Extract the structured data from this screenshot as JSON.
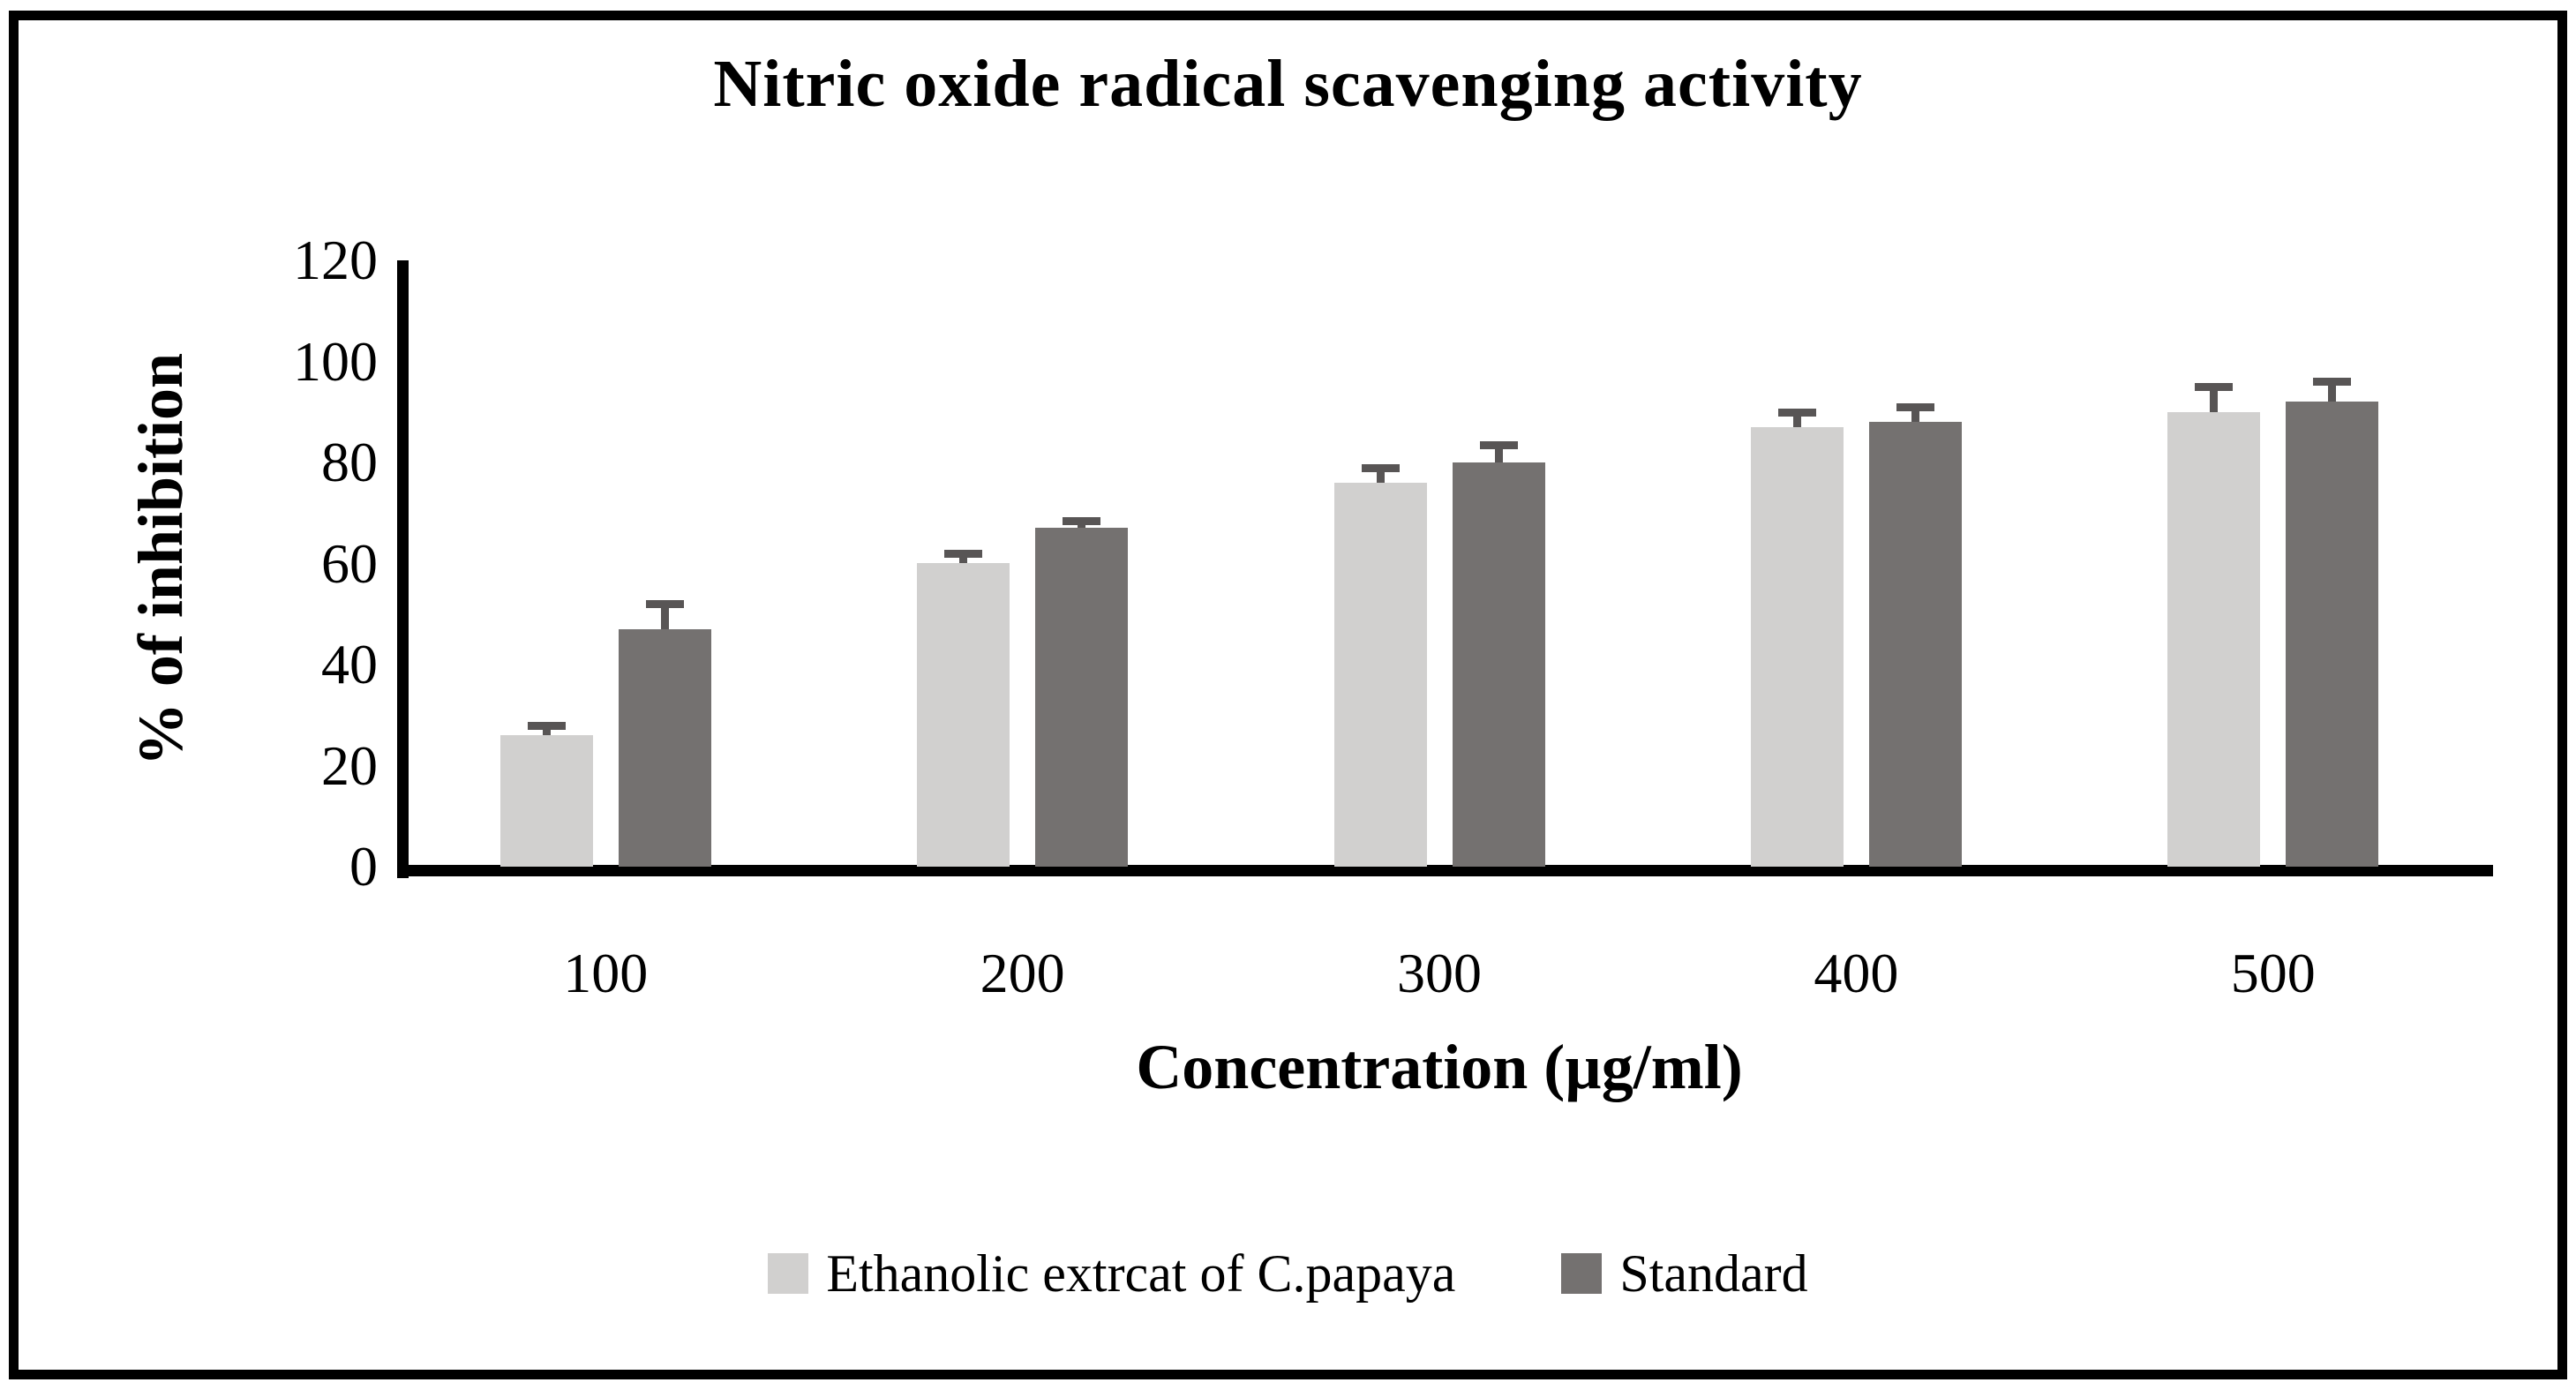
{
  "figure": {
    "background": "#ffffff",
    "border_color": "#000000"
  },
  "chart_data": {
    "type": "bar",
    "title": "Nitric oxide radical scavenging activity",
    "xlabel": "Concentration (µg/ml)",
    "ylabel": "% of inhibition",
    "categories": [
      "100",
      "200",
      "300",
      "400",
      "500"
    ],
    "series": [
      {
        "name": "Ethanolic extrcat of C.papaya",
        "color": "#d1d0cf",
        "values": [
          26,
          60,
          76,
          87,
          90
        ],
        "errors": [
          2,
          2,
          3,
          3,
          5
        ]
      },
      {
        "name": "Standard",
        "color": "#747170",
        "values": [
          47,
          67,
          80,
          88,
          92
        ],
        "errors": [
          5,
          1.5,
          3.5,
          3,
          4
        ]
      }
    ],
    "error_bar_color": "#585555",
    "ylim": [
      0,
      120
    ],
    "yticks": [
      0,
      20,
      40,
      60,
      80,
      100,
      120
    ],
    "grid": false,
    "legend_position": "bottom"
  }
}
